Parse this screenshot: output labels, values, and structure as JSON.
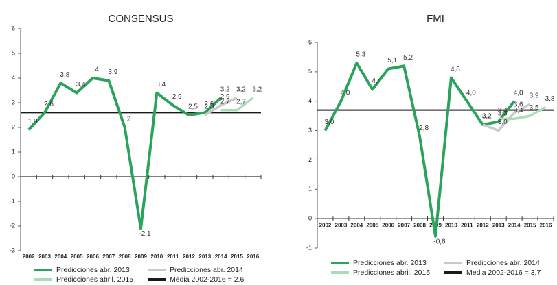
{
  "chart_data": [
    {
      "type": "line",
      "title": "CONSENSUS",
      "categories": [
        "2002",
        "2003",
        "2004",
        "2005",
        "2006",
        "2007",
        "2008",
        "2009",
        "2010",
        "2011",
        "2012",
        "2013",
        "2014",
        "2015",
        "2016"
      ],
      "ylim": [
        -3,
        6
      ],
      "yticks": [
        -3,
        -2,
        -1,
        0,
        1,
        2,
        3,
        4,
        5,
        6
      ],
      "series": [
        {
          "name": "Predicciones abr. 2013",
          "color": "#2ca35c",
          "values": [
            1.9,
            2.6,
            3.8,
            3.4,
            4.0,
            3.9,
            2.0,
            -2.1,
            3.4,
            2.9,
            2.5,
            2.6,
            3.2,
            null,
            null
          ],
          "value_labels": [
            "1,9",
            "2,6",
            "3,8",
            "3,4",
            "4",
            "3,9",
            "2",
            "-2,1",
            "3,4",
            "2,9",
            "2,5",
            "2,6",
            "3,2",
            null,
            null
          ]
        },
        {
          "name": "Predicciones abr. 2014",
          "color": "#c9c9c9",
          "values": [
            null,
            null,
            null,
            null,
            null,
            null,
            null,
            null,
            null,
            null,
            null,
            2.5,
            2.9,
            3.2,
            null
          ],
          "value_labels": [
            null,
            null,
            null,
            null,
            null,
            null,
            null,
            null,
            null,
            null,
            null,
            "2,5",
            "2,9",
            "3,2",
            null
          ]
        },
        {
          "name": "Predicciones abril. 2015",
          "color": "#a9dcb9",
          "values": [
            null,
            null,
            null,
            null,
            null,
            null,
            null,
            null,
            null,
            null,
            null,
            null,
            2.7,
            2.7,
            3.2
          ],
          "value_labels": [
            null,
            null,
            null,
            null,
            null,
            null,
            null,
            null,
            null,
            null,
            null,
            null,
            "2,7",
            "2,7",
            "3,2"
          ]
        }
      ],
      "reference_line": {
        "name": "Media 2002-2016 = 2.6",
        "value": 2.6,
        "color": "#1a1a1a"
      }
    },
    {
      "type": "line",
      "title": "FMI",
      "categories": [
        "2002",
        "2003",
        "2004",
        "2005",
        "2006",
        "2007",
        "2008",
        "2009",
        "2010",
        "2011",
        "2012",
        "2013",
        "2014",
        "2015",
        "2016"
      ],
      "ylim": [
        -1,
        6
      ],
      "yticks": [
        -1,
        0,
        1,
        2,
        3,
        4,
        5,
        6
      ],
      "series": [
        {
          "name": "Predicciones abr. 2013",
          "color": "#2ca35c",
          "values": [
            3.0,
            4.0,
            5.3,
            4.4,
            5.1,
            5.2,
            2.8,
            -0.6,
            4.8,
            4.0,
            3.2,
            3.3,
            4.0,
            null,
            null
          ],
          "value_labels": [
            "3,0",
            "4,0",
            "5,3",
            "4,4",
            "5,1",
            "5,2",
            "2,8",
            "-0,6",
            "4,8",
            "4,0",
            "3,2",
            "3,3",
            "4,0",
            null,
            null
          ]
        },
        {
          "name": "Predicciones abr. 2014",
          "color": "#c9c9c9",
          "values": [
            null,
            null,
            null,
            null,
            null,
            null,
            null,
            null,
            null,
            null,
            3.2,
            3.0,
            3.6,
            3.9,
            null
          ],
          "value_labels": [
            null,
            null,
            null,
            null,
            null,
            null,
            null,
            null,
            null,
            null,
            "3,2",
            "3,0",
            "3,6",
            "3,9",
            null
          ]
        },
        {
          "name": "Predicciones abril. 2015",
          "color": "#a9dcb9",
          "values": [
            null,
            null,
            null,
            null,
            null,
            null,
            null,
            null,
            null,
            null,
            null,
            3.4,
            3.4,
            3.5,
            3.8
          ],
          "value_labels": [
            null,
            null,
            null,
            null,
            null,
            null,
            null,
            null,
            null,
            null,
            null,
            "3,4",
            "3,4",
            "3,5",
            "3,8"
          ]
        }
      ],
      "reference_line": {
        "name": "Media 2002-2016 = 3,7",
        "value": 3.7,
        "color": "#1a1a1a"
      }
    }
  ]
}
